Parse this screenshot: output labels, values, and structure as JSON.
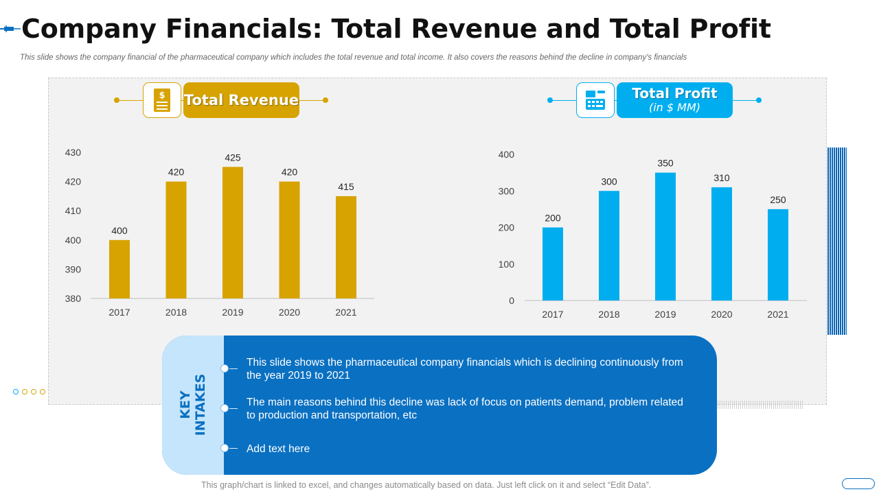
{
  "title": "Company Financials: Total Revenue and Total Profit",
  "subtitle": "This slide shows the company financial of the pharmaceutical company which includes the total revenue and total income. It also covers the reasons behind the decline in company's financials",
  "revenue_header": {
    "label": "Total Revenue",
    "icon": "document-dollar-icon",
    "color": "#d7a300"
  },
  "profit_header": {
    "label": "Total Profit",
    "sublabel": "(in $ MM)",
    "icon": "calculator-icon",
    "color": "#00aeef"
  },
  "chart_data": [
    {
      "type": "bar",
      "title": "Total Revenue",
      "categories": [
        "2017",
        "2018",
        "2019",
        "2020",
        "2021"
      ],
      "values": [
        400,
        420,
        425,
        420,
        415
      ],
      "ylim": [
        380,
        430
      ],
      "yticks": [
        380,
        390,
        400,
        410,
        420,
        430
      ],
      "xlabel": "",
      "ylabel": "",
      "color": "#d7a300",
      "grid": false
    },
    {
      "type": "bar",
      "title": "Total Profit",
      "categories": [
        "2017",
        "2018",
        "2019",
        "2020",
        "2021"
      ],
      "values": [
        200,
        300,
        350,
        310,
        250
      ],
      "ylim": [
        0,
        400
      ],
      "yticks": [
        0,
        100,
        200,
        300,
        400
      ],
      "xlabel": "",
      "ylabel": "",
      "color": "#00aeef",
      "grid": false
    }
  ],
  "key_intakes": {
    "label_line1": "KEY",
    "label_line2": "INTAKES",
    "items": [
      "This slide shows the pharmaceutical company financials which is declining continuously from the year 2019 to 2021",
      "The main reasons behind this decline was lack of focus on patients demand, problem related to production and transportation, etc",
      "Add text here"
    ]
  },
  "footer": "This graph/chart is linked to excel, and changes automatically based on data. Just left click on it and select “Edit Data”."
}
